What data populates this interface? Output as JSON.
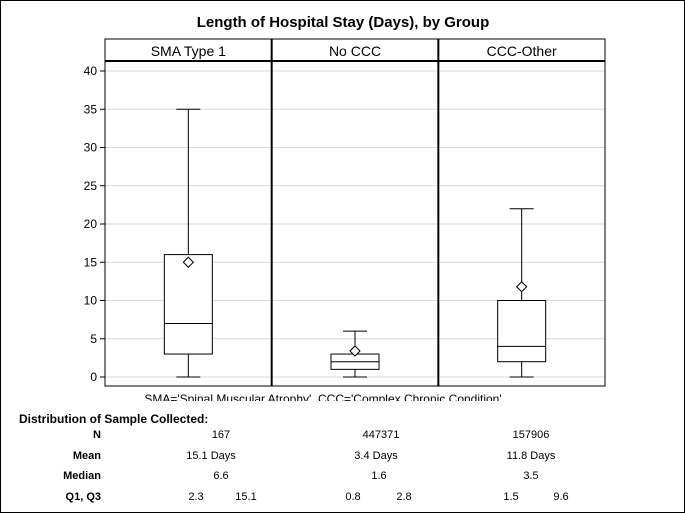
{
  "chart_data": {
    "type": "boxplot",
    "title": "Length of Hospital Stay (Days), by Group",
    "ylim": [
      0,
      40
    ],
    "y_ticks": [
      0,
      5,
      10,
      15,
      20,
      25,
      30,
      35,
      40
    ],
    "grid": true,
    "panels": [
      {
        "label": "SMA Type 1",
        "whisker_low": 0,
        "q1": 3,
        "median": 7,
        "q3": 16,
        "whisker_high": 35,
        "mean": 15
      },
      {
        "label": "No CCC",
        "whisker_low": 0,
        "q1": 1,
        "median": 2,
        "q3": 3,
        "whisker_high": 6,
        "mean": 3.4
      },
      {
        "label": "CCC-Other",
        "whisker_low": 0,
        "q1": 2,
        "median": 4,
        "q3": 10,
        "whisker_high": 22,
        "mean": 11.8
      }
    ],
    "footnote": "SMA='Spinal Muscular Atrophy'  CCC='Complex Chronic Condition'"
  },
  "table": {
    "heading": "Distribution of Sample Collected:",
    "row_labels": {
      "n": "N",
      "mean": "Mean",
      "median": "Median",
      "quartiles": "Q1, Q3"
    },
    "columns": [
      {
        "n": "167",
        "mean": "15.1 Days",
        "median": "6.6",
        "q1": "2.3",
        "q3": "15.1"
      },
      {
        "n": "447371",
        "mean": "3.4 Days",
        "median": "1.6",
        "q1": "0.8",
        "q3": "2.8"
      },
      {
        "n": "157906",
        "mean": "11.8 Days",
        "median": "3.5",
        "q1": "1.5",
        "q3": "9.6"
      }
    ]
  }
}
